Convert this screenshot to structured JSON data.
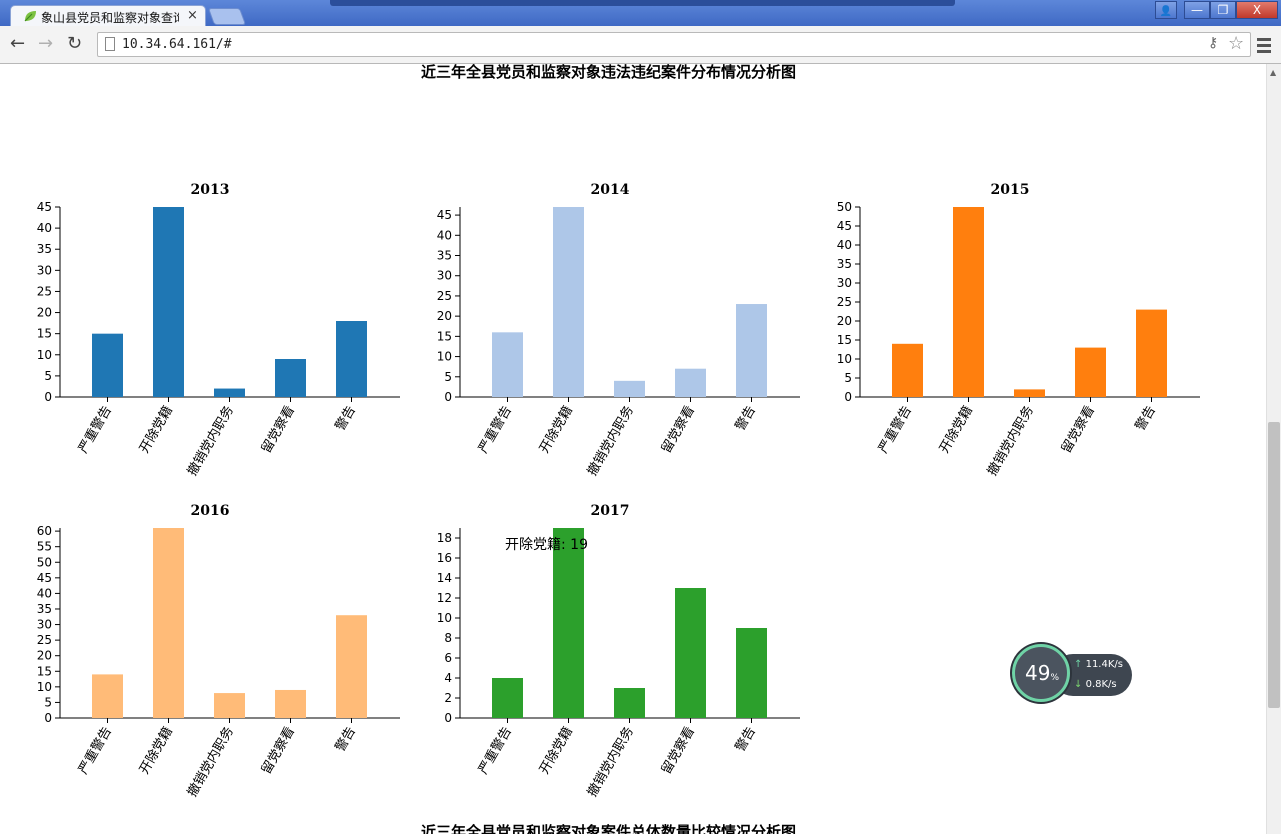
{
  "browser": {
    "tab_title": "象山县党员和监察对象查询",
    "tab_close": "×",
    "url": "10.34.64.161/#",
    "window_controls": {
      "user": "👤",
      "minimize": "—",
      "maximize": "❐",
      "close": "X"
    }
  },
  "page": {
    "heading_top": "近三年全县党员和监察对象违法违纪案件分布情况分析图",
    "heading_bottom": "近三年全县党员和监察对象案件总体数量比较情况分析图",
    "tooltip": "开除党籍: 19"
  },
  "netmon": {
    "percent": "49",
    "percent_unit": "%",
    "upload": "11.4",
    "download": "0.8",
    "unit": "K/s"
  },
  "chart_data": [
    {
      "type": "bar",
      "title": "2013",
      "color": "#1f77b4",
      "categories": [
        "严重警告",
        "开除党籍",
        "撤销党内职务",
        "留党察看",
        "警告"
      ],
      "values": [
        15,
        45,
        2,
        9,
        18
      ],
      "ylim": [
        0,
        45
      ],
      "yticks": [
        0,
        5,
        10,
        15,
        20,
        25,
        30,
        35,
        40,
        45
      ]
    },
    {
      "type": "bar",
      "title": "2014",
      "color": "#aec7e8",
      "categories": [
        "严重警告",
        "开除党籍",
        "撤销党内职务",
        "留党察看",
        "警告"
      ],
      "values": [
        16,
        47,
        4,
        7,
        23
      ],
      "ylim": [
        0,
        47
      ],
      "yticks": [
        0,
        5,
        10,
        15,
        20,
        25,
        30,
        35,
        40,
        45
      ]
    },
    {
      "type": "bar",
      "title": "2015",
      "color": "#ff7f0e",
      "categories": [
        "严重警告",
        "开除党籍",
        "撤销党内职务",
        "留党察看",
        "警告"
      ],
      "values": [
        14,
        50,
        2,
        13,
        23
      ],
      "ylim": [
        0,
        50
      ],
      "yticks": [
        0,
        5,
        10,
        15,
        20,
        25,
        30,
        35,
        40,
        45,
        50
      ]
    },
    {
      "type": "bar",
      "title": "2016",
      "color": "#ffbb78",
      "categories": [
        "严重警告",
        "开除党籍",
        "撤销党内职务",
        "留党察看",
        "警告"
      ],
      "values": [
        14,
        61,
        8,
        9,
        33
      ],
      "ylim": [
        0,
        61
      ],
      "yticks": [
        0,
        5,
        10,
        15,
        20,
        25,
        30,
        35,
        40,
        45,
        50,
        55,
        60
      ]
    },
    {
      "type": "bar",
      "title": "2017",
      "color": "#2ca02c",
      "categories": [
        "严重警告",
        "开除党籍",
        "撤销党内职务",
        "留党察看",
        "警告"
      ],
      "values": [
        4,
        19,
        3,
        13,
        9
      ],
      "ylim": [
        0,
        19
      ],
      "yticks": [
        0,
        2,
        4,
        6,
        8,
        10,
        12,
        14,
        16,
        18
      ]
    }
  ]
}
